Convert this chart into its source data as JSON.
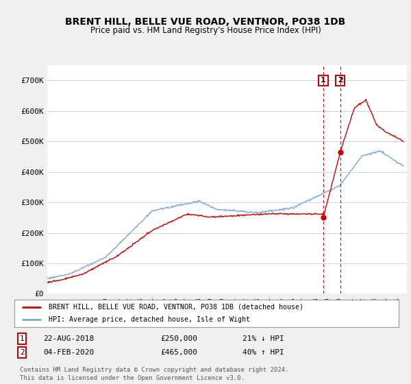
{
  "title": "BRENT HILL, BELLE VUE ROAD, VENTNOR, PO38 1DB",
  "subtitle": "Price paid vs. HM Land Registry's House Price Index (HPI)",
  "ylim": [
    0,
    750000
  ],
  "xlim_start": 1995.0,
  "xlim_end": 2025.8,
  "transaction1": {
    "date": "22-AUG-2018",
    "price": 250000,
    "label": "1",
    "pct": "21%",
    "dir": "↓",
    "year": 2018.64
  },
  "transaction2": {
    "date": "04-FEB-2020",
    "price": 465000,
    "label": "2",
    "pct": "40%",
    "dir": "↑",
    "year": 2020.09
  },
  "legend_line1": "BRENT HILL, BELLE VUE ROAD, VENTNOR, PO38 1DB (detached house)",
  "legend_line2": "HPI: Average price, detached house, Isle of Wight",
  "footer": "Contains HM Land Registry data © Crown copyright and database right 2024.\nThis data is licensed under the Open Government Licence v3.0.",
  "red_color": "#cc0000",
  "blue_color": "#7aaadd",
  "background_color": "#f0f0f0",
  "plot_bg": "#ffffff",
  "grid_color": "#cccccc",
  "tick_years": [
    1995,
    1996,
    1997,
    1998,
    1999,
    2000,
    2001,
    2002,
    2003,
    2004,
    2005,
    2006,
    2007,
    2008,
    2009,
    2010,
    2011,
    2012,
    2013,
    2014,
    2015,
    2016,
    2017,
    2018,
    2019,
    2020,
    2021,
    2022,
    2023,
    2024,
    2025
  ]
}
